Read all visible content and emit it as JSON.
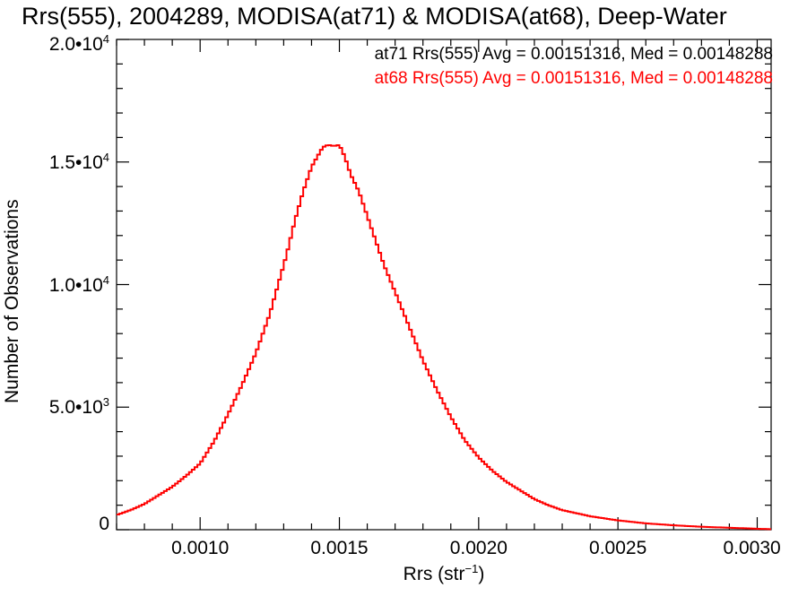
{
  "chart_data": {
    "type": "line",
    "title": "Rrs(555), 2004289, MODISA(at71) & MODISA(at68), Deep-Water",
    "xlabel": "Rrs (str",
    "xlabel_sup": "−1",
    "xlabel_close": ")",
    "ylabel": "Number of Observations",
    "xlim": [
      0.0007,
      0.00305
    ],
    "ylim": [
      0,
      20000
    ],
    "x_ticks": [
      {
        "value": 0.001,
        "label": "0.0010"
      },
      {
        "value": 0.0015,
        "label": "0.0015"
      },
      {
        "value": 0.002,
        "label": "0.0020"
      },
      {
        "value": 0.0025,
        "label": "0.0025"
      },
      {
        "value": 0.003,
        "label": "0.0030"
      }
    ],
    "y_ticks": [
      {
        "value": 0,
        "mant": "0",
        "exp": ""
      },
      {
        "value": 5000,
        "mant": "5.0•10",
        "exp": "3"
      },
      {
        "value": 10000,
        "mant": "1.0•10",
        "exp": "4"
      },
      {
        "value": 15000,
        "mant": "1.5•10",
        "exp": "4"
      },
      {
        "value": 20000,
        "mant": "2.0•10",
        "exp": "4"
      }
    ],
    "annotations": [
      {
        "text": "at71 Rrs(555) Avg = 0.00151316, Med = 0.00148288",
        "color": "#000000"
      },
      {
        "text": "at68 Rrs(555) Avg = 0.00151316, Med = 0.00148288",
        "color": "#ff0000"
      }
    ],
    "series": [
      {
        "color": "#ff0000",
        "x": [
          0.0007,
          0.00075,
          0.0008,
          0.00085,
          0.0009,
          0.00095,
          0.001,
          0.00105,
          0.0011,
          0.00115,
          0.0012,
          0.00125,
          0.00128,
          0.00131,
          0.00134,
          0.00137,
          0.0014,
          0.00142,
          0.00144,
          0.00146,
          0.00148,
          0.0015,
          0.00152,
          0.00154,
          0.00157,
          0.0016,
          0.00163,
          0.00166,
          0.0017,
          0.00175,
          0.0018,
          0.00185,
          0.0019,
          0.00195,
          0.002,
          0.00205,
          0.0021,
          0.00215,
          0.0022,
          0.00225,
          0.0023,
          0.0024,
          0.0025,
          0.0026,
          0.0027,
          0.0028,
          0.0029,
          0.003,
          0.00305
        ],
        "values": [
          600,
          800,
          1050,
          1400,
          1750,
          2200,
          2700,
          3600,
          4700,
          5900,
          7200,
          8800,
          10000,
          11200,
          12600,
          13800,
          14800,
          15200,
          15600,
          15700,
          15650,
          15700,
          15200,
          14500,
          13800,
          12800,
          11800,
          10800,
          9700,
          8300,
          6900,
          5700,
          4600,
          3650,
          2950,
          2400,
          1950,
          1600,
          1250,
          1000,
          800,
          550,
          380,
          260,
          180,
          120,
          80,
          40,
          20
        ]
      }
    ]
  }
}
